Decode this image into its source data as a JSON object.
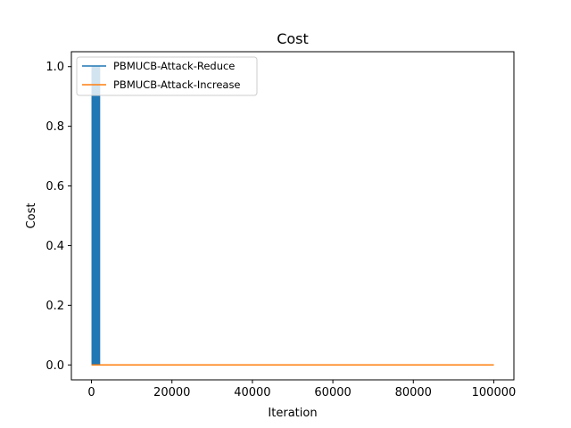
{
  "chart_data": {
    "type": "line",
    "title": "Cost",
    "xlabel": "Iteration",
    "ylabel": "Cost",
    "xlim": [
      -5000,
      105000
    ],
    "ylim": [
      -0.05,
      1.05
    ],
    "xticks": [
      0,
      20000,
      40000,
      60000,
      80000,
      100000
    ],
    "xtick_labels": [
      "0",
      "20000",
      "40000",
      "60000",
      "80000",
      "100000"
    ],
    "yticks": [
      0.0,
      0.2,
      0.4,
      0.6,
      0.8,
      1.0
    ],
    "ytick_labels": [
      "0.0",
      "0.2",
      "0.4",
      "0.6",
      "0.8",
      "1.0"
    ],
    "grid": false,
    "legend_position": "upper-left",
    "series": [
      {
        "name": "PBMUCB-Attack-Reduce",
        "color": "#1f77b4",
        "style": "dense oscillation between 0 and 1 for early iterations, then 0",
        "oscillation_x_range": [
          0,
          2000
        ],
        "x": [
          0,
          2000,
          2000,
          100000
        ],
        "y": [
          1.0,
          1.0,
          0.0,
          0.0
        ]
      },
      {
        "name": "PBMUCB-Attack-Increase",
        "color": "#ff7f0e",
        "x": [
          0,
          100000
        ],
        "y": [
          0.0,
          0.0
        ]
      }
    ]
  }
}
